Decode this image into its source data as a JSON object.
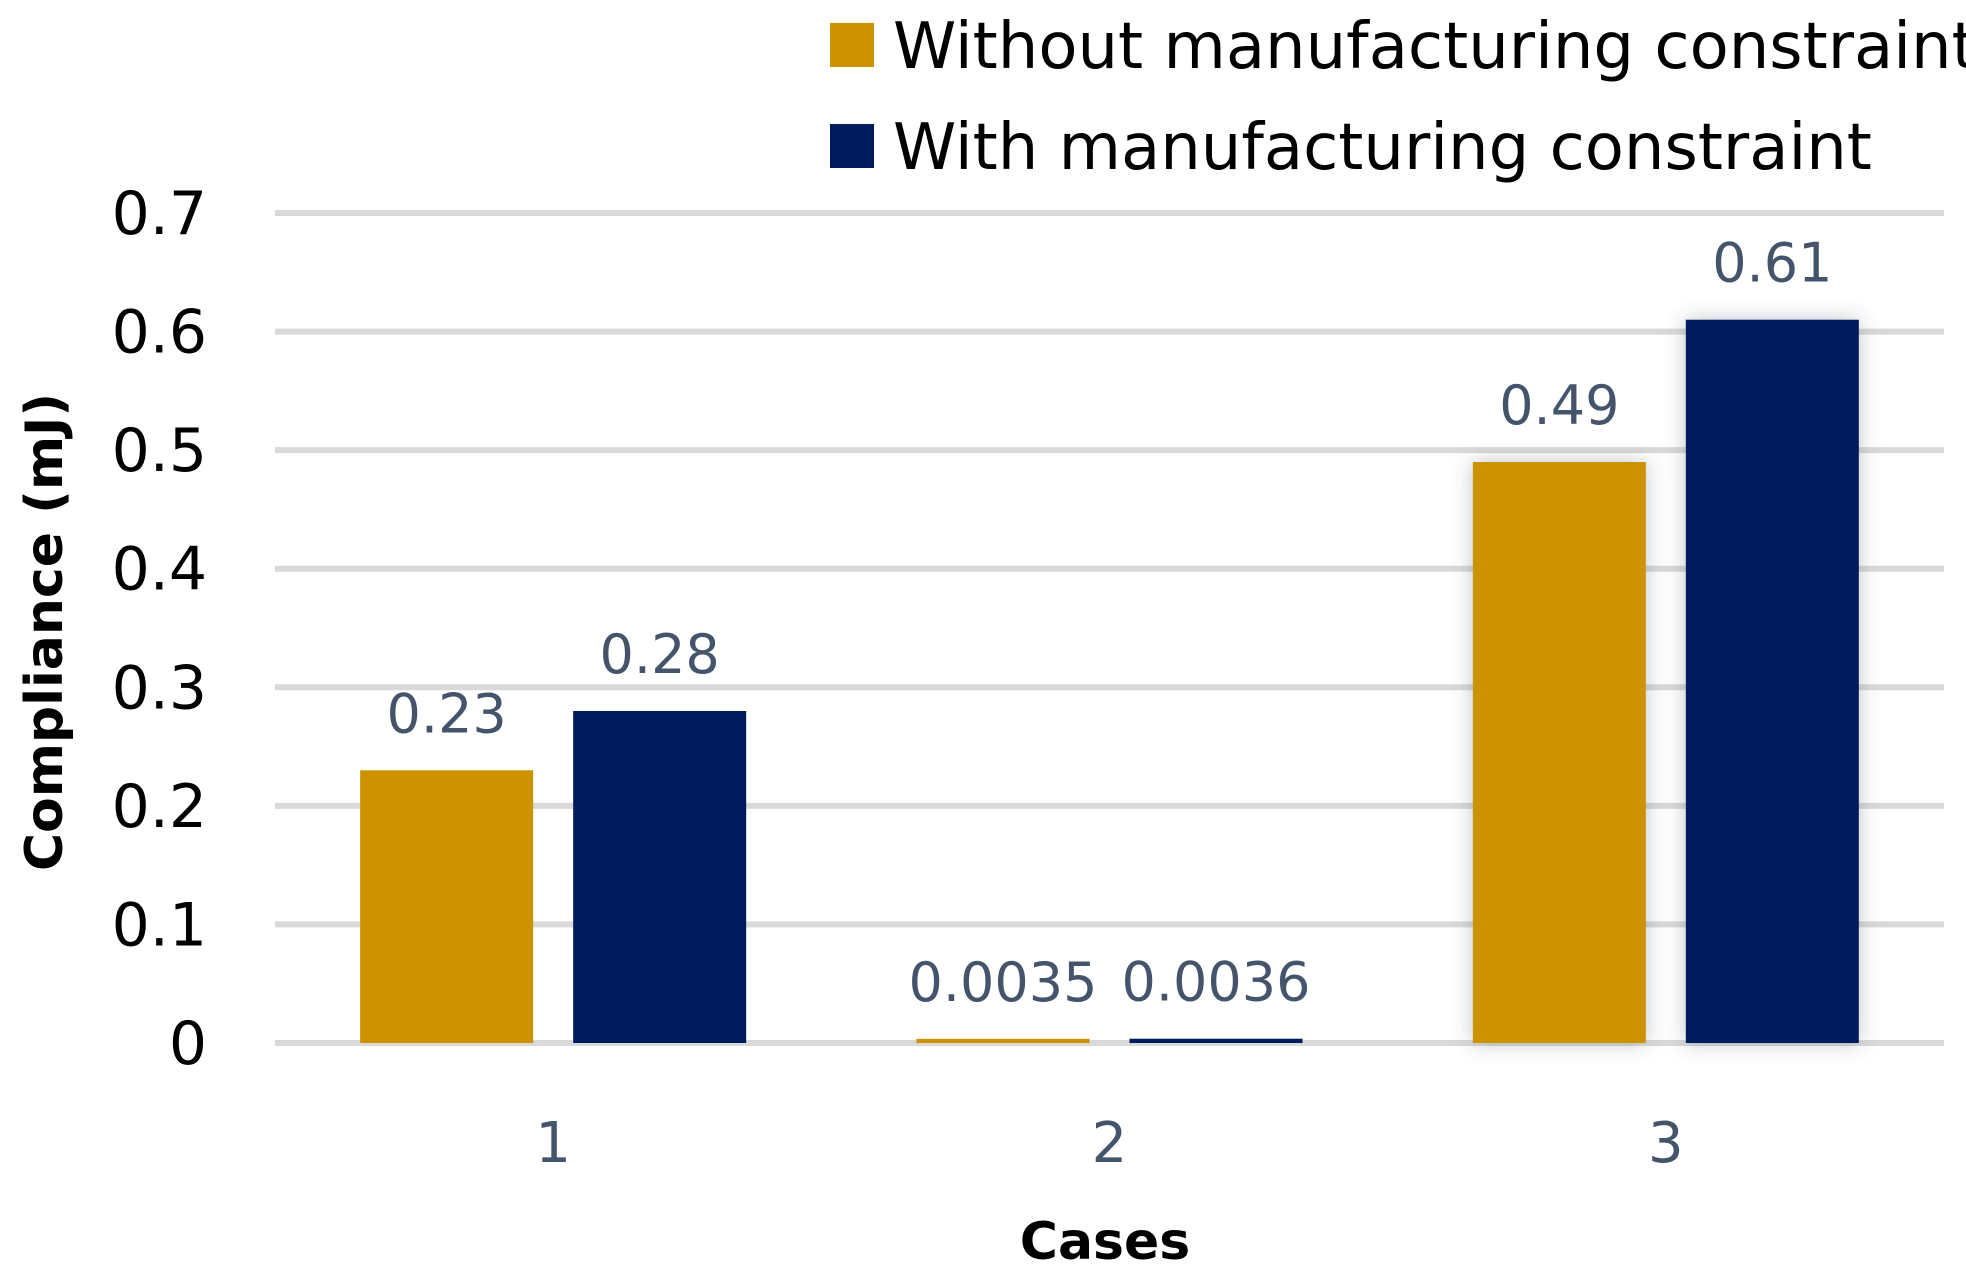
{
  "chart_data": {
    "type": "bar",
    "title": "",
    "xlabel": "Cases",
    "ylabel": "Compliance (mJ)",
    "categories": [
      "1",
      "2",
      "3"
    ],
    "ylim": [
      0,
      0.7
    ],
    "yticks": [
      "0",
      "0.1",
      "0.2",
      "0.3",
      "0.4",
      "0.5",
      "0.6",
      "0.7"
    ],
    "ytick_values": [
      0,
      0.1,
      0.2,
      0.3,
      0.4,
      0.5,
      0.6,
      0.7
    ],
    "grid": true,
    "legend_position": "top-right",
    "series": [
      {
        "name": "Without manufacturing constraint",
        "color": "#cc9200",
        "values": [
          0.23,
          0.0035,
          0.49
        ],
        "labels": [
          "0.23",
          "0.0035",
          "0.49"
        ]
      },
      {
        "name": "With manufacturing constraint",
        "color": "#001a5e",
        "values": [
          0.28,
          0.0036,
          0.61
        ],
        "labels": [
          "0.28",
          "0.0036",
          "0.61"
        ]
      }
    ],
    "colors": {
      "grid": "#d9d9d9",
      "category_text": "#44546a",
      "data_label_text": "#44546a"
    }
  }
}
